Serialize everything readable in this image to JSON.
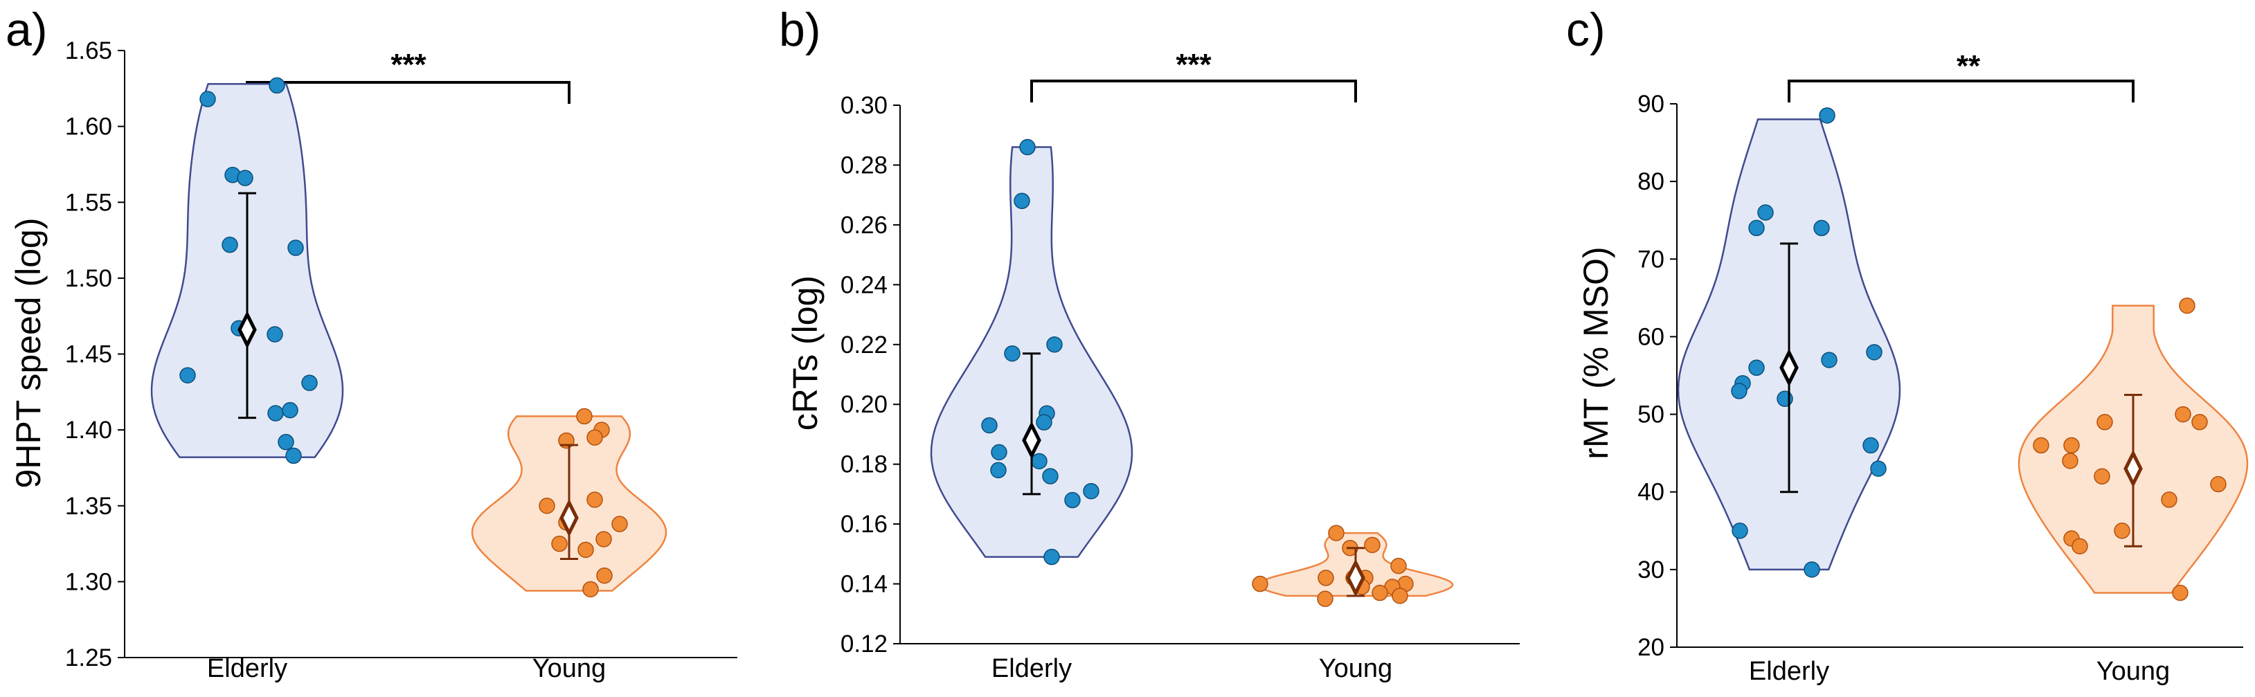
{
  "colors": {
    "elderly_fill": "#e3e8f6",
    "elderly_stroke": "#3f4b8f",
    "elderly_point": "#1f8bc8",
    "young_fill": "#fde4d0",
    "young_stroke": "#ee8340",
    "young_point": "#f08a35",
    "elderly_marker": "#000000",
    "young_marker": "#7a2e08",
    "axis": "#000000"
  },
  "chart_data": [
    {
      "type": "violin",
      "panel_label": "a)",
      "ylabel": "9HPT speed (log)",
      "ylim": [
        1.25,
        1.65
      ],
      "yticks": [
        "1.25",
        "1.30",
        "1.35",
        "1.40",
        "1.45",
        "1.50",
        "1.55",
        "1.60",
        "1.65"
      ],
      "categories": [
        "Elderly",
        "Young"
      ],
      "significance": "***",
      "series": [
        {
          "name": "Elderly",
          "points": [
            1.618,
            1.627,
            1.568,
            1.566,
            1.522,
            1.52,
            1.467,
            1.463,
            1.436,
            1.431,
            1.411,
            1.413,
            1.392,
            1.383
          ],
          "mean": 1.466,
          "error_low": 1.408,
          "error_high": 1.556,
          "violin_range": [
            1.382,
            1.628
          ]
        },
        {
          "name": "Young",
          "points": [
            1.409,
            1.4,
            1.395,
            1.393,
            1.354,
            1.35,
            1.339,
            1.338,
            1.328,
            1.325,
            1.321,
            1.304,
            1.295
          ],
          "mean": 1.342,
          "error_low": 1.315,
          "error_high": 1.39,
          "violin_range": [
            1.294,
            1.409
          ]
        }
      ]
    },
    {
      "type": "violin",
      "panel_label": "b)",
      "ylabel": "cRTs (log)",
      "ylim": [
        0.12,
        0.3
      ],
      "yticks": [
        "0.12",
        "0.14",
        "0.16",
        "0.18",
        "0.20",
        "0.22",
        "0.24",
        "0.26",
        "0.28",
        "0.30"
      ],
      "categories": [
        "Elderly",
        "Young"
      ],
      "significance": "***",
      "series": [
        {
          "name": "Elderly",
          "points": [
            0.286,
            0.268,
            0.22,
            0.217,
            0.197,
            0.194,
            0.193,
            0.184,
            0.181,
            0.178,
            0.176,
            0.171,
            0.168,
            0.149
          ],
          "mean": 0.188,
          "error_low": 0.17,
          "error_high": 0.217,
          "violin_range": [
            0.149,
            0.286
          ]
        },
        {
          "name": "Young",
          "points": [
            0.157,
            0.153,
            0.152,
            0.146,
            0.142,
            0.142,
            0.142,
            0.14,
            0.14,
            0.139,
            0.139,
            0.137,
            0.136,
            0.135
          ],
          "mean": 0.142,
          "error_low": 0.136,
          "error_high": 0.152,
          "violin_range": [
            0.136,
            0.157
          ]
        }
      ]
    },
    {
      "type": "violin",
      "panel_label": "c)",
      "ylabel": "rMT (% MSO)",
      "ylim": [
        20,
        90
      ],
      "yticks": [
        "20",
        "30",
        "40",
        "50",
        "60",
        "70",
        "80",
        "90"
      ],
      "categories": [
        "Elderly",
        "Young"
      ],
      "significance": "**",
      "series": [
        {
          "name": "Elderly",
          "points": [
            88.5,
            76,
            74,
            74,
            58,
            57,
            56,
            54,
            53,
            52,
            46,
            43,
            35,
            30
          ],
          "mean": 56,
          "error_low": 40,
          "error_high": 72,
          "violin_range": [
            30,
            88
          ]
        },
        {
          "name": "Young",
          "points": [
            64,
            50,
            49,
            49,
            46,
            46,
            44,
            42,
            41,
            39,
            35,
            34,
            33,
            27
          ],
          "mean": 43,
          "error_low": 33,
          "error_high": 52.5,
          "violin_range": [
            27,
            64
          ]
        }
      ]
    }
  ]
}
